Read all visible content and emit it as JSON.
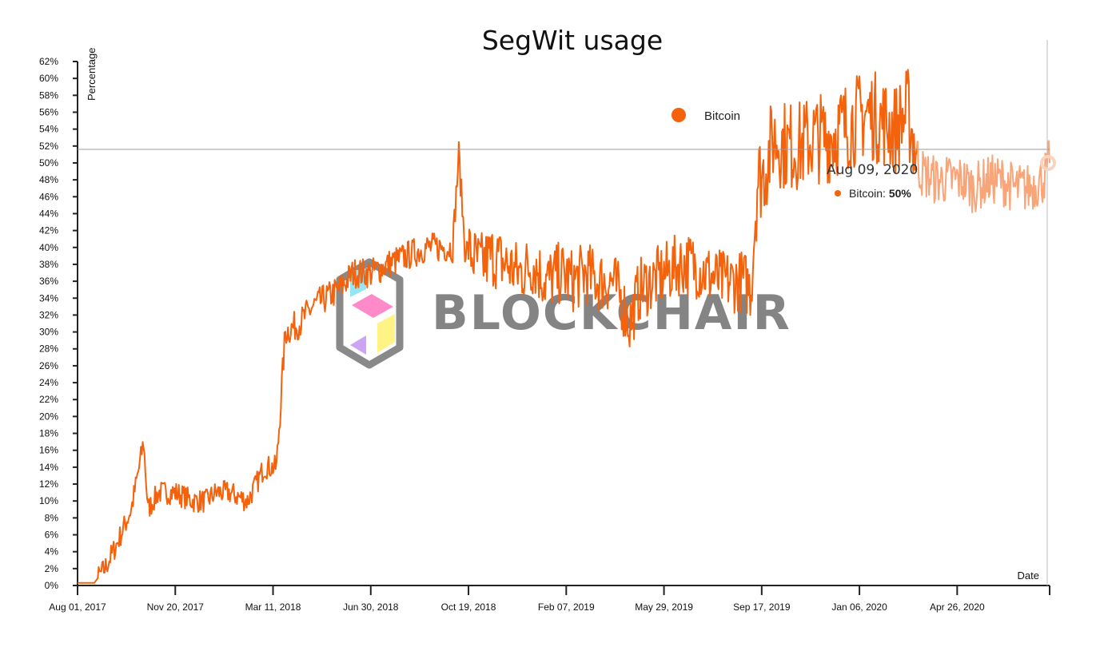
{
  "chart_data": {
    "type": "line",
    "title": "SegWit usage",
    "xlabel": "Date",
    "ylabel": "Percentage",
    "ylim": [
      0,
      62
    ],
    "y_ticks": [
      "0%",
      "2%",
      "4%",
      "6%",
      "8%",
      "10%",
      "12%",
      "14%",
      "16%",
      "18%",
      "20%",
      "22%",
      "24%",
      "26%",
      "28%",
      "30%",
      "32%",
      "34%",
      "36%",
      "38%",
      "40%",
      "42%",
      "44%",
      "46%",
      "48%",
      "50%",
      "52%",
      "54%",
      "56%",
      "58%",
      "60%",
      "62%"
    ],
    "x_range": [
      "2017-08-01",
      "2020-08-09"
    ],
    "x_ticks": [
      "Aug 01, 2017",
      "Nov 20, 2017",
      "Mar 11, 2018",
      "Jun 30, 2018",
      "Oct 19, 2018",
      "Feb 07, 2019",
      "May 29, 2019",
      "Sep 17, 2019",
      "Jan 06, 2020",
      "Apr 26, 2020"
    ],
    "legend": {
      "position": "top-right",
      "entries": [
        {
          "name": "Bitcoin",
          "color": "#f4620c"
        }
      ]
    },
    "series": [
      {
        "name": "Bitcoin",
        "color": "#f4620c",
        "x": [
          "2017-08-01",
          "2017-08-20",
          "2017-09-01",
          "2017-09-15",
          "2017-10-01",
          "2017-10-10",
          "2017-10-15",
          "2017-10-20",
          "2017-11-01",
          "2017-11-20",
          "2017-12-10",
          "2017-12-25",
          "2018-01-05",
          "2018-01-20",
          "2018-02-10",
          "2018-02-20",
          "2018-03-01",
          "2018-03-10",
          "2018-03-15",
          "2018-03-25",
          "2018-04-10",
          "2018-04-25",
          "2018-05-10",
          "2018-05-25",
          "2018-06-10",
          "2018-07-01",
          "2018-07-20",
          "2018-08-10",
          "2018-09-01",
          "2018-09-20",
          "2018-10-01",
          "2018-10-08",
          "2018-10-15",
          "2018-11-01",
          "2018-11-15",
          "2018-12-01",
          "2018-12-15",
          "2019-01-01",
          "2019-01-15",
          "2019-02-01",
          "2019-02-15",
          "2019-03-01",
          "2019-03-15",
          "2019-04-01",
          "2019-04-10",
          "2019-04-20",
          "2019-05-01",
          "2019-05-15",
          "2019-06-01",
          "2019-06-15",
          "2019-07-01",
          "2019-07-15",
          "2019-08-01",
          "2019-08-15",
          "2019-08-28",
          "2019-09-05",
          "2019-09-12",
          "2019-09-20",
          "2019-10-01",
          "2019-10-15",
          "2019-11-01",
          "2019-11-15",
          "2019-12-01",
          "2019-12-15",
          "2020-01-01",
          "2020-01-15",
          "2020-02-01",
          "2020-02-15",
          "2020-03-01",
          "2020-03-15",
          "2020-04-01",
          "2020-04-15",
          "2020-05-01",
          "2020-05-15",
          "2020-06-01",
          "2020-06-15",
          "2020-07-01",
          "2020-07-15",
          "2020-08-01",
          "2020-08-09"
        ],
        "values": [
          0.3,
          0.3,
          2,
          5,
          9,
          14,
          17,
          9,
          11,
          11,
          10,
          10,
          11,
          11,
          10,
          12,
          14,
          14,
          14,
          30,
          31,
          33,
          34,
          35,
          37,
          37,
          38,
          39,
          40,
          40,
          40,
          51,
          40,
          38,
          39,
          38,
          37,
          38,
          36,
          37,
          36,
          37,
          36,
          36,
          34,
          31,
          35,
          36,
          37,
          38,
          38,
          37,
          36,
          36,
          36,
          35,
          48,
          49,
          53,
          52,
          52,
          53,
          53,
          54,
          55,
          56,
          55,
          54,
          56,
          49,
          48,
          48,
          48,
          47,
          48,
          48,
          47,
          47,
          48,
          50
        ]
      }
    ],
    "hover": {
      "date": "Aug 09, 2020",
      "series": "Bitcoin",
      "value_label": "Bitcoin: ",
      "value_text": "50%",
      "value": 50
    }
  },
  "watermark": {
    "text": "BLOCKCHAIR"
  }
}
